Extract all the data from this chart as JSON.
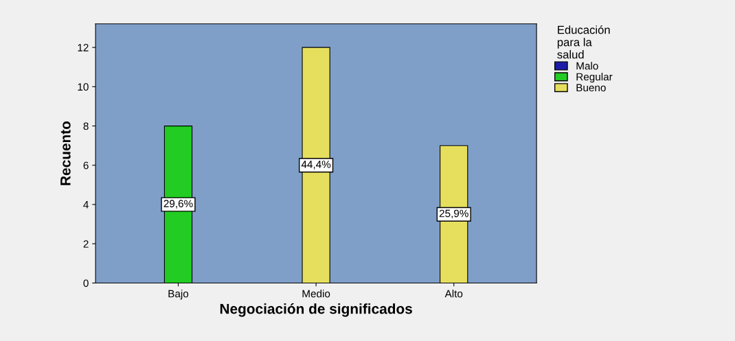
{
  "chart_data": {
    "type": "bar",
    "xlabel": "Negociación de significados",
    "ylabel": "Recuento",
    "legend_title": "Educación\npara la\nsalud",
    "categories": [
      "Bajo",
      "Medio",
      "Alto"
    ],
    "series": [
      {
        "name": "Malo",
        "color": "#1c1ca8",
        "values": [
          null,
          null,
          null
        ]
      },
      {
        "name": "Regular",
        "color": "#22cc22",
        "values": [
          8,
          null,
          null
        ]
      },
      {
        "name": "Bueno",
        "color": "#e6df5e",
        "values": [
          null,
          12,
          7
        ]
      }
    ],
    "annotations": [
      "29,6%",
      "44,4%",
      "25,9%"
    ],
    "ylim": [
      0,
      13.2
    ],
    "yticks": [
      0,
      2,
      4,
      6,
      8,
      10,
      12
    ],
    "grid": false,
    "legend": "right"
  }
}
